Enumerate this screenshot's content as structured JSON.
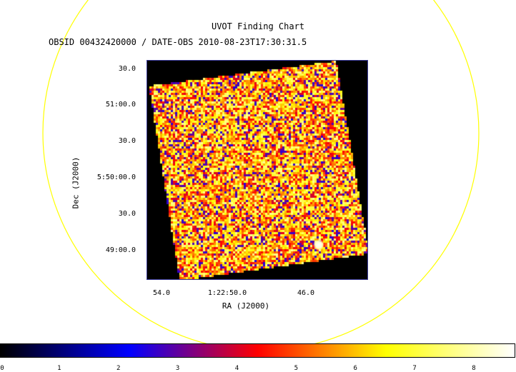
{
  "chart_data": {
    "type": "heatmap",
    "title": "UVOT Finding Chart",
    "subtitle": "OBSID 00432420000 / DATE-OBS 2010-08-23T17:30:31.5",
    "xlabel": "RA (J2000)",
    "ylabel": "Dec (J2000)",
    "x_ticks": [
      "54.0",
      "1:22:50.0",
      "46.0"
    ],
    "y_ticks": [
      "30.0",
      "51:00.0",
      "30.0",
      "5:50:00.0",
      "30.0",
      "49:00.0"
    ],
    "colorbar": {
      "ticks": [
        "0",
        "1",
        "2",
        "3",
        "4",
        "5",
        "6",
        "7",
        "8"
      ],
      "range": [
        0,
        8.7
      ],
      "colormap": [
        "#000000",
        "#0000ff",
        "#ff0000",
        "#ffff00",
        "#ffffff"
      ]
    },
    "grid": false,
    "overlay_circle_color": "#ffff00",
    "image_background": "#000000"
  }
}
